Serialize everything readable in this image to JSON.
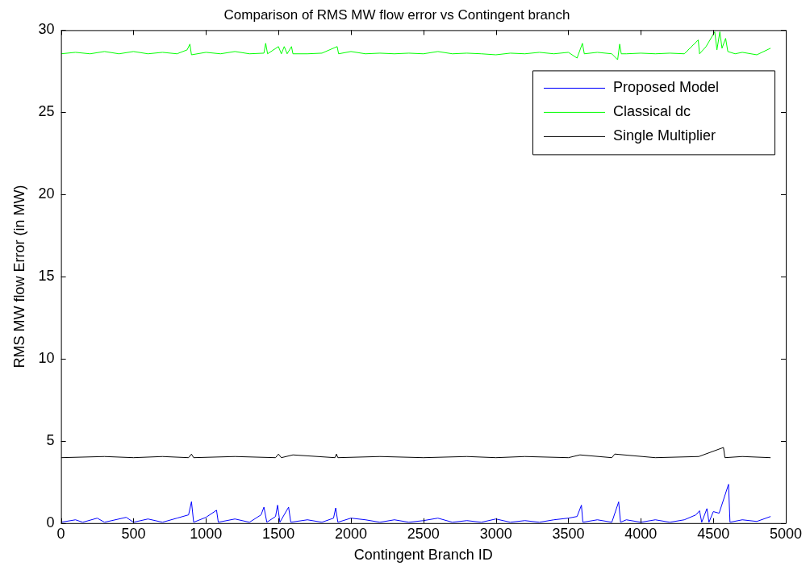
{
  "chart_data": {
    "type": "line",
    "title": "Comparison of RMS MW flow error vs Contingent branch",
    "xlabel": "Contingent Branch ID",
    "ylabel": "RMS MW flow Error (in MW)",
    "xlim": [
      0,
      5000
    ],
    "xticks": [
      0,
      500,
      1000,
      1500,
      2000,
      2500,
      3000,
      3500,
      4000,
      4500,
      5000
    ],
    "ylim": [
      0,
      30
    ],
    "yticks": [
      0,
      5,
      10,
      15,
      20,
      25,
      30
    ],
    "legend": "top right",
    "grid": false,
    "marker": "none",
    "line_style": "solid",
    "series": [
      {
        "name": "Proposed Model",
        "color": "#0000ff",
        "x": [
          0,
          100,
          150,
          250,
          300,
          450,
          500,
          600,
          700,
          800,
          880,
          900,
          915,
          1000,
          1073,
          1085,
          1200,
          1300,
          1380,
          1400,
          1420,
          1480,
          1494,
          1510,
          1570,
          1585,
          1700,
          1800,
          1880,
          1895,
          1910,
          2000,
          2100,
          2200,
          2300,
          2400,
          2500,
          2600,
          2700,
          2800,
          2900,
          3000,
          3100,
          3200,
          3300,
          3400,
          3500,
          3560,
          3590,
          3600,
          3700,
          3800,
          3847,
          3860,
          3900,
          4000,
          4100,
          4200,
          4300,
          4380,
          4405,
          4420,
          4456,
          4470,
          4500,
          4540,
          4605,
          4615,
          4700,
          4800,
          4895
        ],
        "values": [
          0.05,
          0.2,
          0.05,
          0.3,
          0.05,
          0.35,
          0.05,
          0.25,
          0.05,
          0.3,
          0.5,
          1.3,
          0.05,
          0.35,
          0.78,
          0.05,
          0.25,
          0.05,
          0.5,
          0.97,
          0.05,
          0.4,
          1.09,
          0.05,
          0.97,
          0.05,
          0.2,
          0.05,
          0.3,
          0.92,
          0.05,
          0.3,
          0.2,
          0.05,
          0.2,
          0.05,
          0.15,
          0.3,
          0.05,
          0.15,
          0.05,
          0.25,
          0.05,
          0.15,
          0.05,
          0.2,
          0.3,
          0.4,
          1.09,
          0.05,
          0.2,
          0.05,
          1.29,
          0.05,
          0.2,
          0.05,
          0.2,
          0.05,
          0.2,
          0.5,
          0.75,
          0.05,
          0.88,
          0.05,
          0.7,
          0.6,
          2.36,
          0.05,
          0.2,
          0.1,
          0.4
        ]
      },
      {
        "name": "Classical dc",
        "color": "#00ff00",
        "x": [
          0,
          100,
          200,
          300,
          400,
          500,
          600,
          700,
          800,
          870,
          889,
          900,
          1000,
          1100,
          1200,
          1300,
          1400,
          1412,
          1425,
          1500,
          1520,
          1540,
          1560,
          1590,
          1600,
          1700,
          1800,
          1905,
          1915,
          2000,
          2100,
          2200,
          2300,
          2400,
          2500,
          2600,
          2700,
          2800,
          2900,
          3000,
          3100,
          3200,
          3300,
          3400,
          3500,
          3560,
          3597,
          3610,
          3700,
          3800,
          3840,
          3854,
          3865,
          3900,
          4000,
          4100,
          4200,
          4300,
          4396,
          4405,
          4450,
          4510,
          4525,
          4545,
          4560,
          4585,
          4600,
          4650,
          4700,
          4800,
          4895
        ],
        "values": [
          28.56,
          28.65,
          28.56,
          28.7,
          28.56,
          28.7,
          28.56,
          28.65,
          28.56,
          28.8,
          29.15,
          28.5,
          28.65,
          28.56,
          28.7,
          28.56,
          28.6,
          29.2,
          28.56,
          29.0,
          28.56,
          29.0,
          28.56,
          29.0,
          28.56,
          28.56,
          28.6,
          29.0,
          28.56,
          28.7,
          28.56,
          28.6,
          28.56,
          28.6,
          28.56,
          28.7,
          28.56,
          28.6,
          28.56,
          28.5,
          28.6,
          28.56,
          28.65,
          28.56,
          28.65,
          28.3,
          29.2,
          28.56,
          28.65,
          28.56,
          28.2,
          29.15,
          28.56,
          28.56,
          28.6,
          28.56,
          28.6,
          28.56,
          29.4,
          28.56,
          29.0,
          29.9,
          28.8,
          29.9,
          28.9,
          29.5,
          28.7,
          28.56,
          28.65,
          28.5,
          28.9
        ]
      },
      {
        "name": "Single Multiplier",
        "color": "#000000",
        "x": [
          0,
          300,
          500,
          700,
          880,
          900,
          915,
          1200,
          1480,
          1500,
          1520,
          1600,
          1890,
          1900,
          1910,
          2200,
          2500,
          2800,
          3000,
          3200,
          3500,
          3580,
          3800,
          3820,
          4100,
          4400,
          4570,
          4580,
          4700,
          4895
        ],
        "values": [
          3.98,
          4.05,
          3.98,
          4.05,
          3.98,
          4.2,
          3.98,
          4.05,
          3.98,
          4.2,
          3.98,
          4.15,
          3.98,
          4.2,
          3.98,
          4.05,
          3.98,
          4.05,
          3.98,
          4.05,
          3.98,
          4.15,
          3.98,
          4.2,
          3.98,
          4.05,
          4.6,
          3.98,
          4.05,
          3.98
        ]
      }
    ]
  }
}
